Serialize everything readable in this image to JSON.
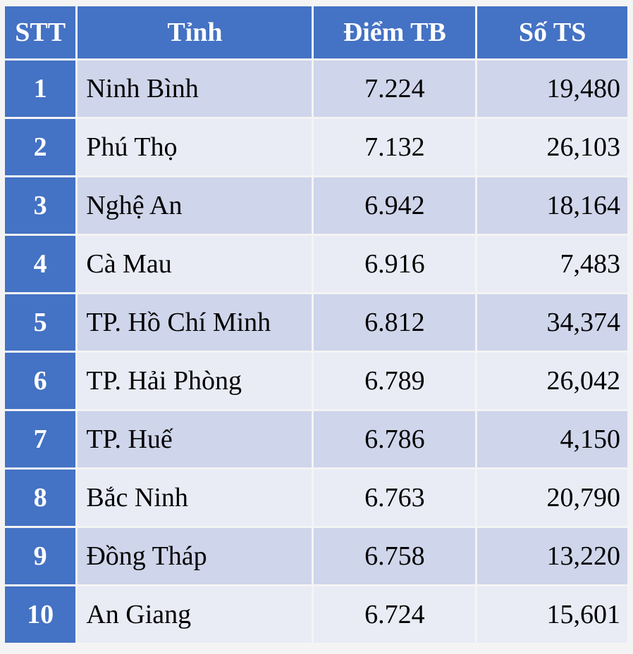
{
  "chart_data": {
    "type": "table",
    "columns": [
      "STT",
      "Tỉnh",
      "Điểm TB",
      "Số TS"
    ],
    "rows": [
      {
        "stt": "1",
        "tinh": "Ninh Bình",
        "diem": "7.224",
        "sots": "19,480"
      },
      {
        "stt": "2",
        "tinh": "Phú Thọ",
        "diem": "7.132",
        "sots": "26,103"
      },
      {
        "stt": "3",
        "tinh": "Nghệ An",
        "diem": "6.942",
        "sots": "18,164"
      },
      {
        "stt": "4",
        "tinh": "Cà Mau",
        "diem": "6.916",
        "sots": "7,483"
      },
      {
        "stt": "5",
        "tinh": "TP. Hồ Chí Minh",
        "diem": "6.812",
        "sots": "34,374"
      },
      {
        "stt": "6",
        "tinh": "TP. Hải Phòng",
        "diem": "6.789",
        "sots": "26,042"
      },
      {
        "stt": "7",
        "tinh": "TP. Huế",
        "diem": "6.786",
        "sots": "4,150"
      },
      {
        "stt": "8",
        "tinh": "Bắc Ninh",
        "diem": "6.763",
        "sots": "20,790"
      },
      {
        "stt": "9",
        "tinh": "Đồng Tháp",
        "diem": "6.758",
        "sots": "13,220"
      },
      {
        "stt": "10",
        "tinh": "An Giang",
        "diem": "6.724",
        "sots": "15,601"
      }
    ]
  },
  "colors": {
    "header_bg": "#4472c4",
    "row_odd_bg": "#cfd5ea",
    "row_even_bg": "#e9ebf5",
    "header_text": "#ffffff"
  }
}
